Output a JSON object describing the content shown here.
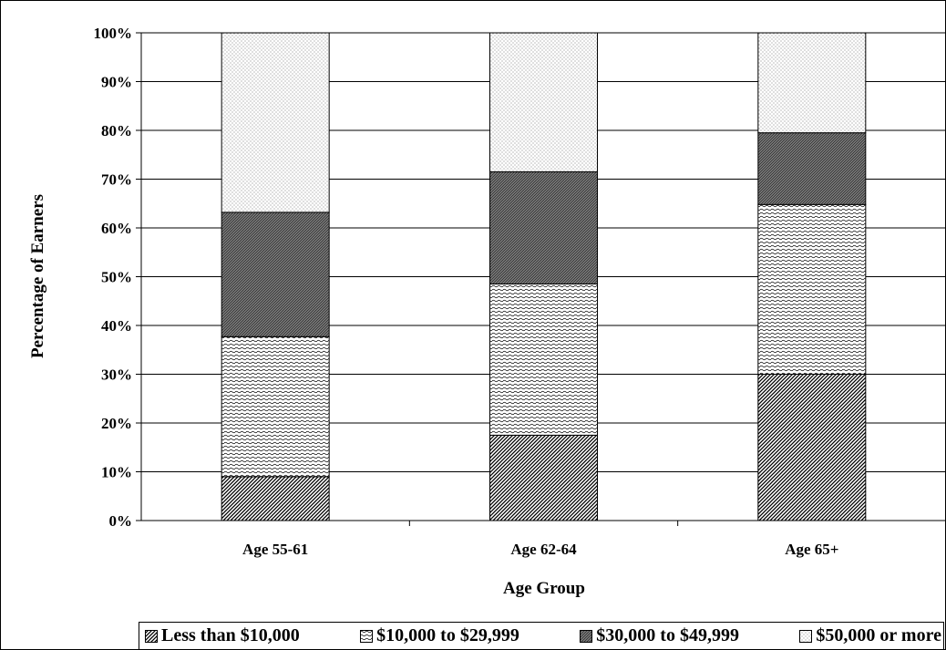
{
  "chart_data": {
    "type": "bar",
    "stacked": true,
    "title": "",
    "xlabel": "Age Group",
    "ylabel": "Percentage of Earners",
    "ylim": [
      0,
      100
    ],
    "yticks": [
      "0%",
      "10%",
      "20%",
      "30%",
      "40%",
      "50%",
      "60%",
      "70%",
      "80%",
      "90%",
      "100%"
    ],
    "categories": [
      "Age 55-61",
      "Age 62-64",
      "Age 65+"
    ],
    "series": [
      {
        "name": "Less than $10,000",
        "values": [
          9,
          17.5,
          30
        ],
        "pattern": "diag-dense"
      },
      {
        "name": "$10,000 to $29,999",
        "values": [
          28.7,
          31,
          34.8
        ],
        "pattern": "wave"
      },
      {
        "name": "$30,000 to $49,999",
        "values": [
          25.5,
          23,
          14.7
        ],
        "pattern": "hatch-dark"
      },
      {
        "name": "$50,000 or more",
        "values": [
          36.8,
          28.5,
          20.5
        ],
        "pattern": "dots"
      }
    ],
    "grid": true,
    "legend": "bottom"
  }
}
